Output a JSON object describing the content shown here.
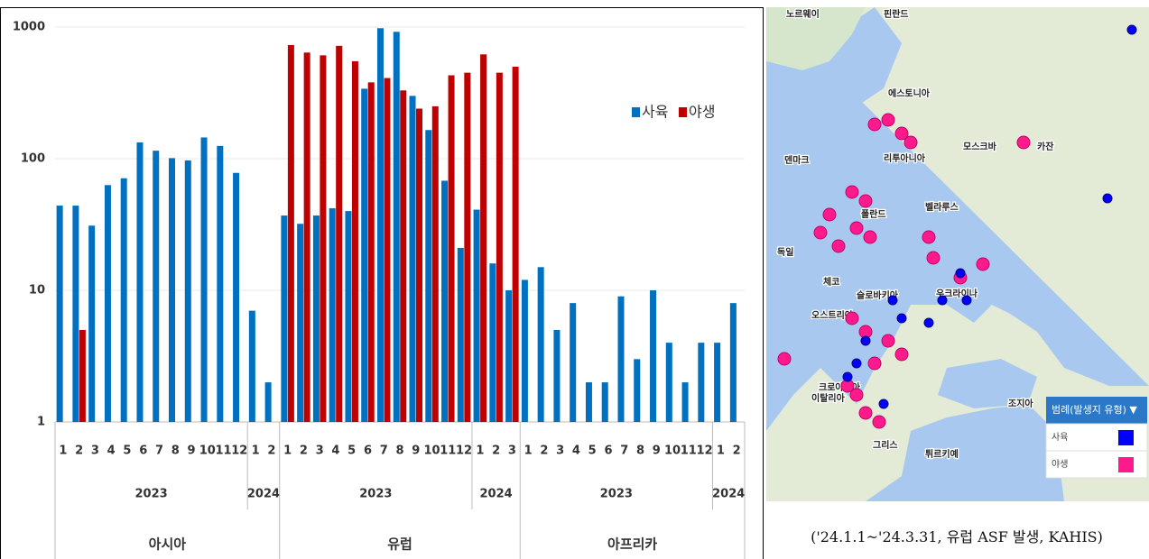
{
  "chart_data": {
    "type": "bar",
    "log_scale": true,
    "ylim": [
      1,
      1000
    ],
    "yticks": [
      1,
      10,
      100,
      1000
    ],
    "grid": true,
    "legend": "top-right",
    "regions": [
      {
        "label": "아시아",
        "years": [
          {
            "label": "2023",
            "months": [
              "1",
              "2",
              "3",
              "4",
              "5",
              "6",
              "7",
              "8",
              "9",
              "10",
              "11",
              "12"
            ]
          },
          {
            "label": "2024",
            "months": [
              "1",
              "2"
            ]
          }
        ]
      },
      {
        "label": "유럽",
        "years": [
          {
            "label": "2023",
            "months": [
              "1",
              "2",
              "3",
              "4",
              "5",
              "6",
              "7",
              "8",
              "9",
              "10",
              "11",
              "12"
            ]
          },
          {
            "label": "2024",
            "months": [
              "1",
              "2",
              "3"
            ]
          }
        ]
      },
      {
        "label": "아프리카",
        "years": [
          {
            "label": "2023",
            "months": [
              "1",
              "2",
              "3",
              "4",
              "5",
              "6",
              "7",
              "8",
              "9",
              "10",
              "11",
              "12"
            ]
          },
          {
            "label": "2024",
            "months": [
              "1",
              "2"
            ]
          }
        ]
      }
    ],
    "series": [
      {
        "name": "사육",
        "color": "#0070c0",
        "values": [
          44,
          44,
          31,
          63,
          71,
          133,
          115,
          101,
          97,
          145,
          125,
          78,
          7,
          2,
          37,
          32,
          37,
          42,
          40,
          340,
          980,
          920,
          300,
          165,
          68,
          21,
          41,
          16,
          10,
          12,
          15,
          5,
          8,
          2,
          2,
          9,
          3,
          10,
          4,
          2,
          4,
          4,
          8
        ]
      },
      {
        "name": "야생",
        "color": "#c00000",
        "values": [
          null,
          5,
          null,
          null,
          null,
          null,
          null,
          null,
          null,
          null,
          null,
          null,
          null,
          null,
          730,
          640,
          610,
          720,
          550,
          380,
          410,
          330,
          240,
          250,
          430,
          450,
          620,
          450,
          500,
          null,
          null,
          null,
          null,
          null,
          null,
          null,
          null,
          null,
          null,
          null,
          null,
          null,
          null
        ]
      }
    ]
  },
  "map": {
    "labels": [
      "노르웨이",
      "핀란드",
      "에스토니아",
      "리투아니아",
      "덴마크",
      "벨라루스",
      "폴란드",
      "독일",
      "체코",
      "슬로바키아",
      "오스트리아",
      "우크라이나",
      "크로아티아",
      "이탈리아",
      "그리스",
      "튀르키예",
      "조지아",
      "모스크바",
      "카잔"
    ],
    "legend": {
      "title": "범례(발생지 유형) ▼",
      "items": [
        {
          "label": "사육",
          "color": "#0000ff"
        },
        {
          "label": "야생",
          "color": "#ff1a8c"
        }
      ]
    },
    "caption": "('24.1.1~'24.3.31, 유럽 ASF 발생, KAHIS)"
  }
}
